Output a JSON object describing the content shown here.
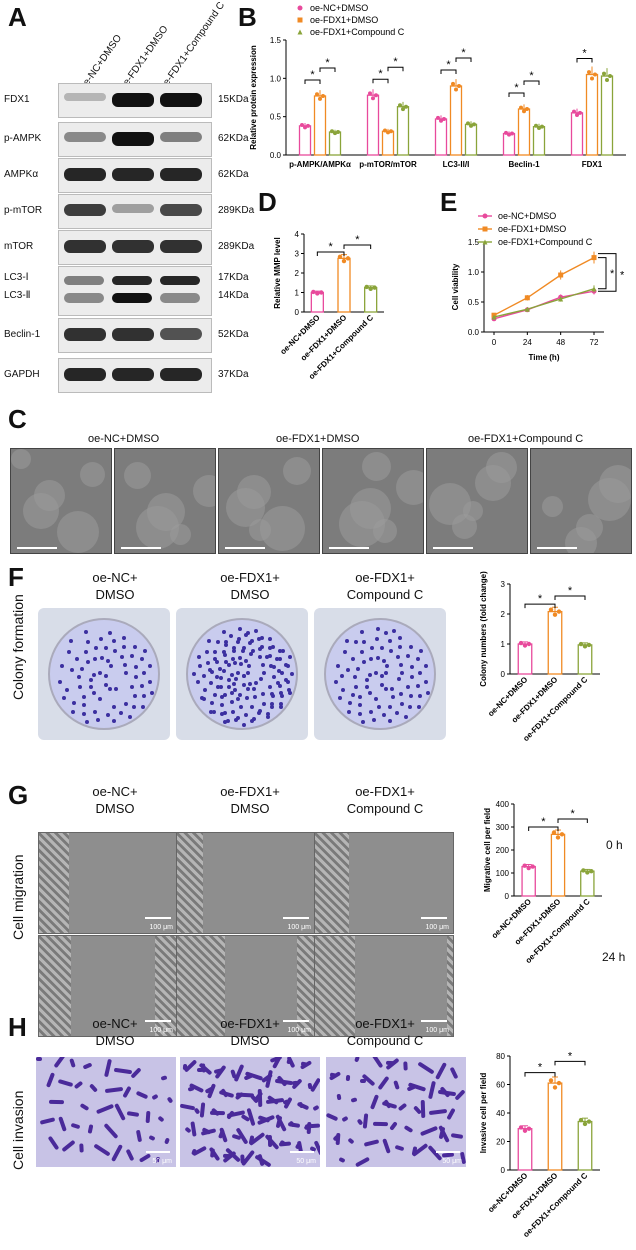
{
  "panels": {
    "A": {
      "letter": "A",
      "lanes": [
        "oe-NC+DMSO",
        "oe-FDX1+DMSO",
        "oe-FDX1+Compound C"
      ],
      "rows": [
        {
          "protein": "FDX1",
          "kda": "15KDa"
        },
        {
          "protein": "p-AMPK",
          "kda": "62KDa"
        },
        {
          "protein": "AMPKα",
          "kda": "62KDa"
        },
        {
          "protein": "p-mTOR",
          "kda": "289KDa"
        },
        {
          "protein": "mTOR",
          "kda": "289KDa"
        },
        {
          "protein": "LC3-Ⅰ",
          "protein2": "LC3-Ⅱ",
          "kda": "17KDa",
          "kda2": "14KDa"
        },
        {
          "protein": "Beclin-1",
          "kda": "52KDa"
        },
        {
          "protein": "GAPDH",
          "kda": "37KDa"
        }
      ]
    },
    "B": {
      "letter": "B"
    },
    "C": {
      "letter": "C",
      "labels": [
        "oe-NC+DMSO",
        "oe-FDX1+DMSO",
        "oe-FDX1+Compound C"
      ]
    },
    "D": {
      "letter": "D"
    },
    "E": {
      "letter": "E"
    },
    "F": {
      "letter": "F",
      "side": "Colony formation",
      "conds": [
        "oe-NC+\nDMSO",
        "oe-FDX1+\nDMSO",
        "oe-FDX1+\nCompound C"
      ]
    },
    "G": {
      "letter": "G",
      "side": "Cell migration",
      "conds": [
        "oe-NC+\nDMSO",
        "oe-FDX1+\nDMSO",
        "oe-FDX1+\nCompound C"
      ],
      "times": [
        "0 h",
        "24 h"
      ],
      "scale": "100 μm"
    },
    "H": {
      "letter": "H",
      "side": "Cell invasion",
      "conds": [
        "oe-NC+\nDMSO",
        "oe-FDX1+\nDMSO",
        "oe-FDX1+\nCompound C"
      ],
      "scale": "50 μm"
    }
  },
  "colors": {
    "nc": "#e84a9c",
    "fdx1": "#f08a24",
    "cc": "#8aa43a"
  },
  "chart_data": [
    {
      "id": "B",
      "type": "bar",
      "ylabel": "Relative protein expression",
      "ylim": [
        0,
        1.5
      ],
      "yticks": [
        0.0,
        0.5,
        1.0,
        1.5
      ],
      "categories": [
        "p-AMPK/AMPKα",
        "p-mTOR/mTOR",
        "LC3-II/I",
        "Beclin-1",
        "FDX1"
      ],
      "series": [
        {
          "name": "oe-NC+DMSO",
          "values": [
            0.38,
            0.78,
            0.47,
            0.28,
            0.55
          ]
        },
        {
          "name": "oe-FDX1+DMSO",
          "values": [
            0.77,
            0.31,
            0.9,
            0.6,
            1.05
          ]
        },
        {
          "name": "oe-FDX1+Compound C",
          "values": [
            0.3,
            0.63,
            0.4,
            0.37,
            1.03
          ]
        }
      ],
      "sig": "*"
    },
    {
      "id": "D",
      "type": "bar",
      "ylabel": "Relative MMP level",
      "ylim": [
        0,
        4
      ],
      "yticks": [
        0,
        1,
        2,
        3,
        4
      ],
      "categories": [
        "oe-NC+DMSO",
        "oe-FDX1+DMSO",
        "oe-FDX1+Compound C"
      ],
      "values": [
        1.0,
        2.75,
        1.25
      ],
      "sig": "*"
    },
    {
      "id": "E",
      "type": "line",
      "xlabel": "Time (h)",
      "ylabel": "Cell viability",
      "x": [
        0,
        24,
        48,
        72
      ],
      "ylim": [
        0,
        1.5
      ],
      "yticks": [
        0.0,
        0.5,
        1.0,
        1.5
      ],
      "series": [
        {
          "name": "oe-NC+DMSO",
          "values": [
            0.22,
            0.37,
            0.58,
            0.68
          ]
        },
        {
          "name": "oe-FDX1+DMSO",
          "values": [
            0.28,
            0.57,
            0.95,
            1.24
          ]
        },
        {
          "name": "oe-FDX1+Compound C",
          "values": [
            0.25,
            0.38,
            0.55,
            0.72
          ]
        }
      ],
      "sig": "*"
    },
    {
      "id": "F",
      "type": "bar",
      "ylabel": "Colony numbers (fold change)",
      "ylim": [
        0,
        3
      ],
      "yticks": [
        0,
        1,
        2,
        3
      ],
      "categories": [
        "oe-NC+DMSO",
        "oe-FDX1+DMSO",
        "oe-FDX1+Compound C"
      ],
      "values": [
        1.0,
        2.08,
        0.97
      ],
      "sig": "*"
    },
    {
      "id": "G",
      "type": "bar",
      "ylabel": "Migrative cell per field",
      "ylim": [
        0,
        400
      ],
      "yticks": [
        0,
        100,
        200,
        300,
        400
      ],
      "categories": [
        "oe-NC+DMSO",
        "oe-FDX1+DMSO",
        "oe-FDX1+Compound C"
      ],
      "values": [
        128,
        268,
        108
      ],
      "sig": "*"
    },
    {
      "id": "H",
      "type": "bar",
      "ylabel": "Invasive cell per field",
      "ylim": [
        0,
        80
      ],
      "yticks": [
        0,
        20,
        40,
        60,
        80
      ],
      "categories": [
        "oe-NC+DMSO",
        "oe-FDX1+DMSO",
        "oe-FDX1+Compound C"
      ],
      "values": [
        29,
        61,
        34
      ],
      "sig": "*"
    }
  ]
}
